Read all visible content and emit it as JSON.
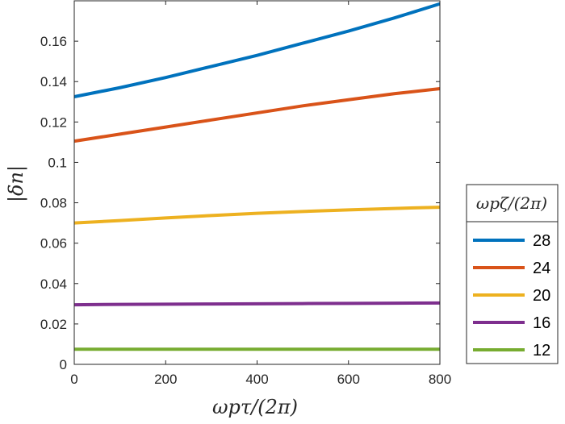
{
  "chart_data": {
    "type": "line",
    "title": "",
    "xlabel": "ωpτ/(2π)",
    "ylabel": "|δn|",
    "xlim": [
      0,
      800
    ],
    "ylim": [
      0,
      0.18
    ],
    "x_ticks": [
      0,
      200,
      400,
      600,
      800
    ],
    "x_tick_labels": [
      "0",
      "200",
      "400",
      "600",
      "800"
    ],
    "y_ticks": [
      0,
      0.02,
      0.04,
      0.06,
      0.08,
      0.1,
      0.12,
      0.14,
      0.16
    ],
    "y_tick_labels": [
      "0",
      "0.02",
      "0.04",
      "0.06",
      "0.08",
      "0.1",
      "0.12",
      "0.14",
      "0.16"
    ],
    "grid": false,
    "legend": {
      "title": "ωpζ/(2π)",
      "placement": "outside-right"
    },
    "x": [
      0,
      100,
      200,
      300,
      400,
      500,
      600,
      700,
      800
    ],
    "series": [
      {
        "name": "28",
        "color": "#0072BD",
        "values": [
          0.1325,
          0.137,
          0.142,
          0.1475,
          0.153,
          0.159,
          0.165,
          0.1715,
          0.1785
        ]
      },
      {
        "name": "24",
        "color": "#D95319",
        "values": [
          0.1105,
          0.114,
          0.1175,
          0.121,
          0.1245,
          0.128,
          0.131,
          0.134,
          0.1365
        ]
      },
      {
        "name": "20",
        "color": "#EDB120",
        "values": [
          0.07,
          0.0712,
          0.0725,
          0.0737,
          0.0748,
          0.0757,
          0.0765,
          0.0772,
          0.0778
        ]
      },
      {
        "name": "16",
        "color": "#7E2F8E",
        "values": [
          0.0295,
          0.0297,
          0.0298,
          0.0299,
          0.03,
          0.0301,
          0.0302,
          0.0303,
          0.0304
        ]
      },
      {
        "name": "12",
        "color": "#77AC30",
        "values": [
          0.0075,
          0.0075,
          0.0075,
          0.0075,
          0.0075,
          0.0075,
          0.0075,
          0.0075,
          0.0075
        ]
      }
    ]
  }
}
